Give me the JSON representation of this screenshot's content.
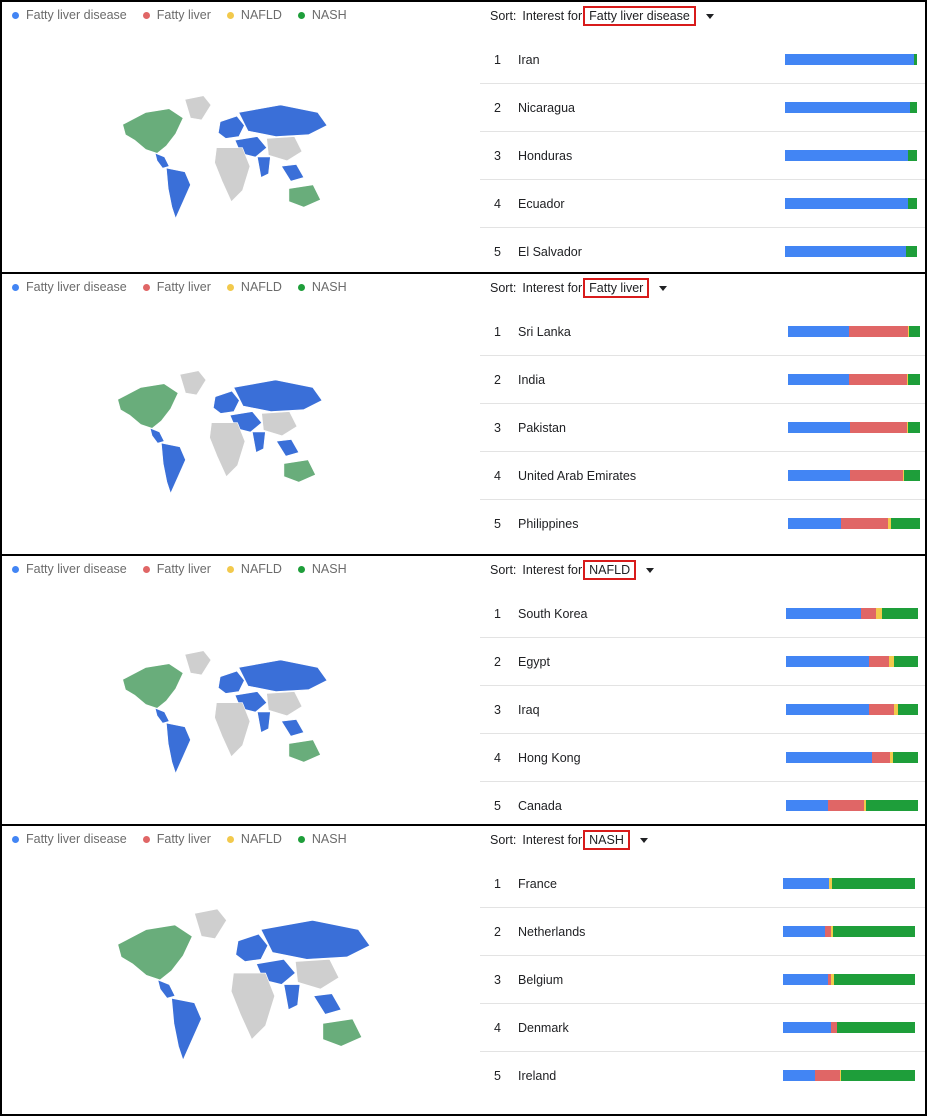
{
  "legend": [
    {
      "label": "Fatty liver disease",
      "color": "#4285f4"
    },
    {
      "label": "Fatty liver",
      "color": "#e06666"
    },
    {
      "label": "NAFLD",
      "color": "#f2c94c"
    },
    {
      "label": "NASH",
      "color": "#1e9e3a"
    }
  ],
  "sort_label": "Sort:",
  "sort_for": "Interest for",
  "chart_data": [
    {
      "type": "bar",
      "sort_value": "Fatty liver disease",
      "rows": [
        {
          "rank": "1",
          "country": "Iran",
          "values": [
            98,
            0,
            0,
            2
          ]
        },
        {
          "rank": "2",
          "country": "Nicaragua",
          "values": [
            95,
            0,
            0,
            5
          ]
        },
        {
          "rank": "3",
          "country": "Honduras",
          "values": [
            93,
            0,
            0,
            7
          ]
        },
        {
          "rank": "4",
          "country": "Ecuador",
          "values": [
            93,
            0,
            0,
            7
          ]
        },
        {
          "rank": "5",
          "country": "El Salvador",
          "values": [
            92,
            0,
            0,
            8
          ]
        }
      ]
    },
    {
      "type": "bar",
      "sort_value": "Fatty liver",
      "rows": [
        {
          "rank": "1",
          "country": "Sri Lanka",
          "values": [
            46,
            45,
            1,
            8
          ]
        },
        {
          "rank": "2",
          "country": "India",
          "values": [
            46,
            44,
            1,
            9
          ]
        },
        {
          "rank": "3",
          "country": "Pakistan",
          "values": [
            47,
            43,
            1,
            9
          ]
        },
        {
          "rank": "4",
          "country": "United Arab Emirates",
          "values": [
            47,
            40,
            1,
            12
          ]
        },
        {
          "rank": "5",
          "country": "Philippines",
          "values": [
            40,
            36,
            2,
            22
          ]
        }
      ]
    },
    {
      "type": "bar",
      "sort_value": "NAFLD",
      "rows": [
        {
          "rank": "1",
          "country": "South Korea",
          "values": [
            57,
            11,
            5,
            27
          ]
        },
        {
          "rank": "2",
          "country": "Egypt",
          "values": [
            63,
            15,
            4,
            18
          ]
        },
        {
          "rank": "3",
          "country": "Iraq",
          "values": [
            63,
            19,
            3,
            15
          ]
        },
        {
          "rank": "4",
          "country": "Hong Kong",
          "values": [
            65,
            14,
            2,
            19
          ]
        },
        {
          "rank": "5",
          "country": "Canada",
          "values": [
            32,
            27,
            2,
            39
          ]
        }
      ]
    },
    {
      "type": "bar",
      "sort_value": "NASH",
      "rows": [
        {
          "rank": "1",
          "country": "France",
          "values": [
            35,
            0,
            2,
            63
          ]
        },
        {
          "rank": "2",
          "country": "Netherlands",
          "values": [
            32,
            4,
            2,
            62
          ]
        },
        {
          "rank": "3",
          "country": "Belgium",
          "values": [
            34,
            2,
            3,
            61
          ]
        },
        {
          "rank": "4",
          "country": "Denmark",
          "values": [
            36,
            5,
            0,
            59
          ]
        },
        {
          "rank": "5",
          "country": "Ireland",
          "values": [
            24,
            19,
            1,
            56
          ]
        }
      ]
    }
  ],
  "map_colors": {
    "blue": "#3a6fd8",
    "green": "#69ad7b",
    "gray": "#cfcfcf"
  }
}
